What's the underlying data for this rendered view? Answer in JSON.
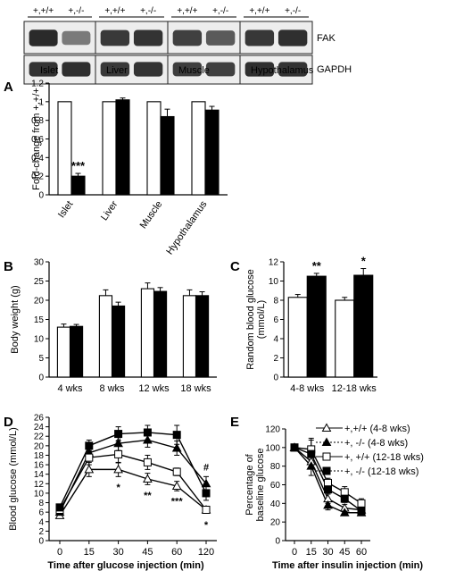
{
  "blot": {
    "genotype_labels": [
      "+,+/+",
      "+,-/-"
    ],
    "tissues": [
      "Islet",
      "Liver",
      "Muscle",
      "Hypothalamus"
    ],
    "proteins": [
      "FAK",
      "GAPDH"
    ],
    "fak_intensity": [
      [
        0.92,
        0.55
      ],
      [
        0.85,
        0.88
      ],
      [
        0.82,
        0.7
      ],
      [
        0.86,
        0.9
      ]
    ],
    "gapdh_intensity": [
      [
        0.88,
        0.9
      ],
      [
        0.85,
        0.88
      ],
      [
        0.83,
        0.82
      ],
      [
        0.9,
        0.88
      ]
    ]
  },
  "chart_data": [
    {
      "id": "A",
      "type": "bar",
      "panel_label": "A",
      "categories": [
        "Islet",
        "Liver",
        "Muscle",
        "Hypothalamus"
      ],
      "series": [
        {
          "fill": "#ffffff",
          "values": [
            1.0,
            1.0,
            1.0,
            1.0
          ],
          "errors": [
            0,
            0,
            0,
            0
          ]
        },
        {
          "fill": "#000000",
          "values": [
            0.2,
            1.02,
            0.84,
            0.91
          ],
          "errors": [
            0.03,
            0.02,
            0.08,
            0.04
          ]
        }
      ],
      "annotations": [
        {
          "category": 0,
          "series": 1,
          "text": "***"
        }
      ],
      "ylabel": "Fold-change from +,+/+",
      "ylim": [
        0,
        1.2
      ],
      "yticks": [
        0,
        0.2,
        0.4,
        0.6,
        0.8,
        1,
        1.2
      ],
      "ytick_labels": [
        "0",
        "0.2",
        "0.4",
        "0.6",
        "0.8",
        "1",
        "1.2"
      ]
    },
    {
      "id": "B",
      "type": "bar",
      "panel_label": "B",
      "categories": [
        "4 wks",
        "8 wks",
        "12 wks",
        "18 wks"
      ],
      "series": [
        {
          "fill": "#ffffff",
          "values": [
            13.0,
            21.2,
            23.0,
            21.2
          ],
          "errors": [
            0.8,
            1.5,
            1.5,
            1.5
          ]
        },
        {
          "fill": "#000000",
          "values": [
            13.2,
            18.5,
            22.3,
            21.2
          ],
          "errors": [
            0.5,
            1.0,
            1.0,
            1.0
          ]
        }
      ],
      "annotations": [],
      "ylabel": "Body weight (g)",
      "ylim": [
        0,
        30
      ],
      "yticks": [
        0,
        5,
        10,
        15,
        20,
        25,
        30
      ],
      "ytick_labels": [
        "0",
        "5",
        "10",
        "15",
        "20",
        "25",
        "30"
      ]
    },
    {
      "id": "C",
      "type": "bar",
      "panel_label": "C",
      "categories": [
        "4-8 wks",
        "12-18 wks"
      ],
      "series": [
        {
          "fill": "#ffffff",
          "values": [
            8.3,
            8.0
          ],
          "errors": [
            0.3,
            0.3
          ]
        },
        {
          "fill": "#000000",
          "values": [
            10.5,
            10.6
          ],
          "errors": [
            0.3,
            0.7
          ]
        }
      ],
      "annotations": [
        {
          "category": 0,
          "series": 1,
          "text": "**"
        },
        {
          "category": 1,
          "series": 1,
          "text": "*"
        }
      ],
      "ylabel": "Random blood glucose (mmol/L)",
      "ylabel_lines": [
        "Random blood glucose",
        "(mmol/L)"
      ],
      "ylim": [
        0,
        12
      ],
      "yticks": [
        0,
        2,
        4,
        6,
        8,
        10,
        12
      ],
      "ytick_labels": [
        "0",
        "2",
        "4",
        "6",
        "8",
        "10",
        "12"
      ]
    },
    {
      "id": "D",
      "type": "line",
      "panel_label": "D",
      "x": [
        0,
        15,
        30,
        45,
        60,
        120
      ],
      "xtick_labels": [
        "0",
        "15",
        "30",
        "45",
        "60",
        "120"
      ],
      "series": [
        {
          "marker": "triangle",
          "fill": "#ffffff",
          "dashed": false,
          "values": [
            5.3,
            15.0,
            15.0,
            13.0,
            11.5,
            6.5
          ],
          "errors": [
            0.5,
            1.5,
            1.5,
            1.2,
            1.0,
            0.5
          ]
        },
        {
          "marker": "triangle",
          "fill": "#000000",
          "dashed": true,
          "values": [
            6.0,
            18.5,
            20.5,
            21.2,
            19.5,
            12.0
          ],
          "errors": [
            0.5,
            1.5,
            1.5,
            1.5,
            1.5,
            1.5
          ]
        },
        {
          "marker": "square",
          "fill": "#ffffff",
          "dashed": false,
          "values": [
            6.5,
            17.5,
            18.2,
            16.5,
            14.5,
            6.5
          ],
          "errors": [
            0.5,
            1.5,
            1.8,
            1.5,
            0.8,
            0.5
          ]
        },
        {
          "marker": "square",
          "fill": "#000000",
          "dashed": true,
          "values": [
            7.0,
            20.0,
            22.5,
            22.8,
            22.3,
            10.0
          ],
          "errors": [
            0.5,
            1.2,
            1.5,
            1.5,
            2.0,
            1.5
          ]
        }
      ],
      "annotations": [
        {
          "x": 30,
          "y": 20.9,
          "text": "#"
        },
        {
          "x": 60,
          "y": 22.3,
          "text": "#"
        },
        {
          "x": 120,
          "y": 15.5,
          "text": "#"
        },
        {
          "x": 30,
          "y": 11.3,
          "text": "*"
        },
        {
          "x": 45,
          "y": 9.6,
          "text": "**"
        },
        {
          "x": 60,
          "y": 8.4,
          "text": "***"
        },
        {
          "x": 120,
          "y": 3.4,
          "text": "*"
        }
      ],
      "xlabel": "Time after glucose injection (min)",
      "ylabel": "Blood glucose (mmol/L)",
      "ylim": [
        0,
        26
      ],
      "yticks": [
        0,
        2,
        4,
        6,
        8,
        10,
        12,
        14,
        16,
        18,
        20,
        22,
        24,
        26
      ],
      "ytick_labels": [
        "0",
        "2",
        "4",
        "6",
        "8",
        "10",
        "12",
        "14",
        "16",
        "18",
        "20",
        "22",
        "24",
        "26"
      ]
    },
    {
      "id": "E",
      "type": "line",
      "panel_label": "E",
      "x": [
        0,
        15,
        30,
        45,
        60
      ],
      "xtick_labels": [
        "0",
        "15",
        "30",
        "45",
        "60"
      ],
      "series": [
        {
          "name": "+,+/+ (4-8 wks)",
          "marker": "triangle",
          "fill": "#ffffff",
          "dashed": false,
          "values": [
            100,
            85,
            45,
            35,
            33
          ],
          "errors": [
            0,
            8,
            5,
            4,
            4
          ]
        },
        {
          "name": "+, -/- (4-8 wks)",
          "marker": "triangle",
          "fill": "#000000",
          "dashed": true,
          "values": [
            100,
            80,
            38,
            30,
            30
          ],
          "errors": [
            0,
            10,
            5,
            3,
            3
          ]
        },
        {
          "name": "+, +/+ (12-18 wks)",
          "marker": "square",
          "fill": "#ffffff",
          "dashed": false,
          "values": [
            100,
            98,
            62,
            52,
            40
          ],
          "errors": [
            0,
            12,
            5,
            6,
            5
          ]
        },
        {
          "name": "+, -/- (12-18 wks)",
          "marker": "square",
          "fill": "#000000",
          "dashed": true,
          "values": [
            100,
            93,
            55,
            45,
            32
          ],
          "errors": [
            0,
            15,
            5,
            4,
            4
          ]
        }
      ],
      "legend_position": "top-right",
      "xlabel": "Time after insulin injection (min)",
      "ylabel": "Percentage of baseline glucose",
      "ylabel_lines": [
        "Percentage of",
        "baseline glucose"
      ],
      "ylim": [
        0,
        120
      ],
      "yticks": [
        0,
        20,
        40,
        60,
        80,
        100,
        120
      ],
      "ytick_labels": [
        "0",
        "20",
        "40",
        "60",
        "80",
        "100",
        "120"
      ]
    }
  ]
}
